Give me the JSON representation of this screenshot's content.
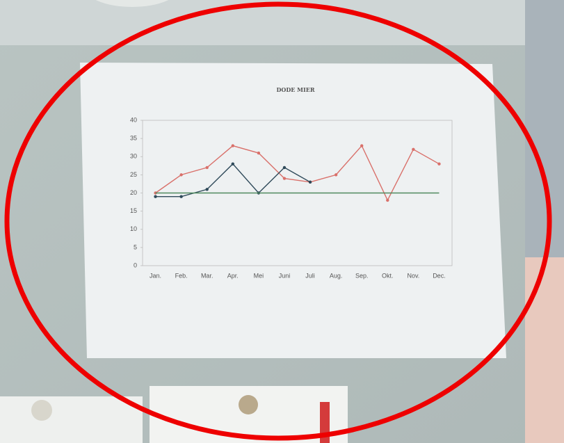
{
  "chart_data": {
    "type": "line",
    "title": "DODE MIER",
    "categories": [
      "Jan.",
      "Feb.",
      "Mar.",
      "Apr.",
      "Mei",
      "Juni",
      "Juli",
      "Aug.",
      "Sep.",
      "Okt.",
      "Nov.",
      "Dec."
    ],
    "series": [
      {
        "color": "#d9706a",
        "markers": true,
        "values": [
          20,
          25,
          27,
          33,
          31,
          24,
          23,
          25,
          33,
          18,
          32,
          28
        ]
      },
      {
        "color": "#2f4a5a",
        "markers": true,
        "values": [
          19,
          19,
          21,
          28,
          20,
          27,
          23,
          null,
          null,
          null,
          null,
          null
        ]
      },
      {
        "color": "#4f8a5e",
        "markers": false,
        "values": [
          20,
          20,
          20,
          20,
          20,
          20,
          20,
          20,
          20,
          20,
          20,
          20
        ]
      }
    ],
    "ylim": [
      0,
      40
    ],
    "yticks": [
      0,
      5,
      10,
      15,
      20,
      25,
      30,
      35,
      40
    ],
    "grid": false
  }
}
